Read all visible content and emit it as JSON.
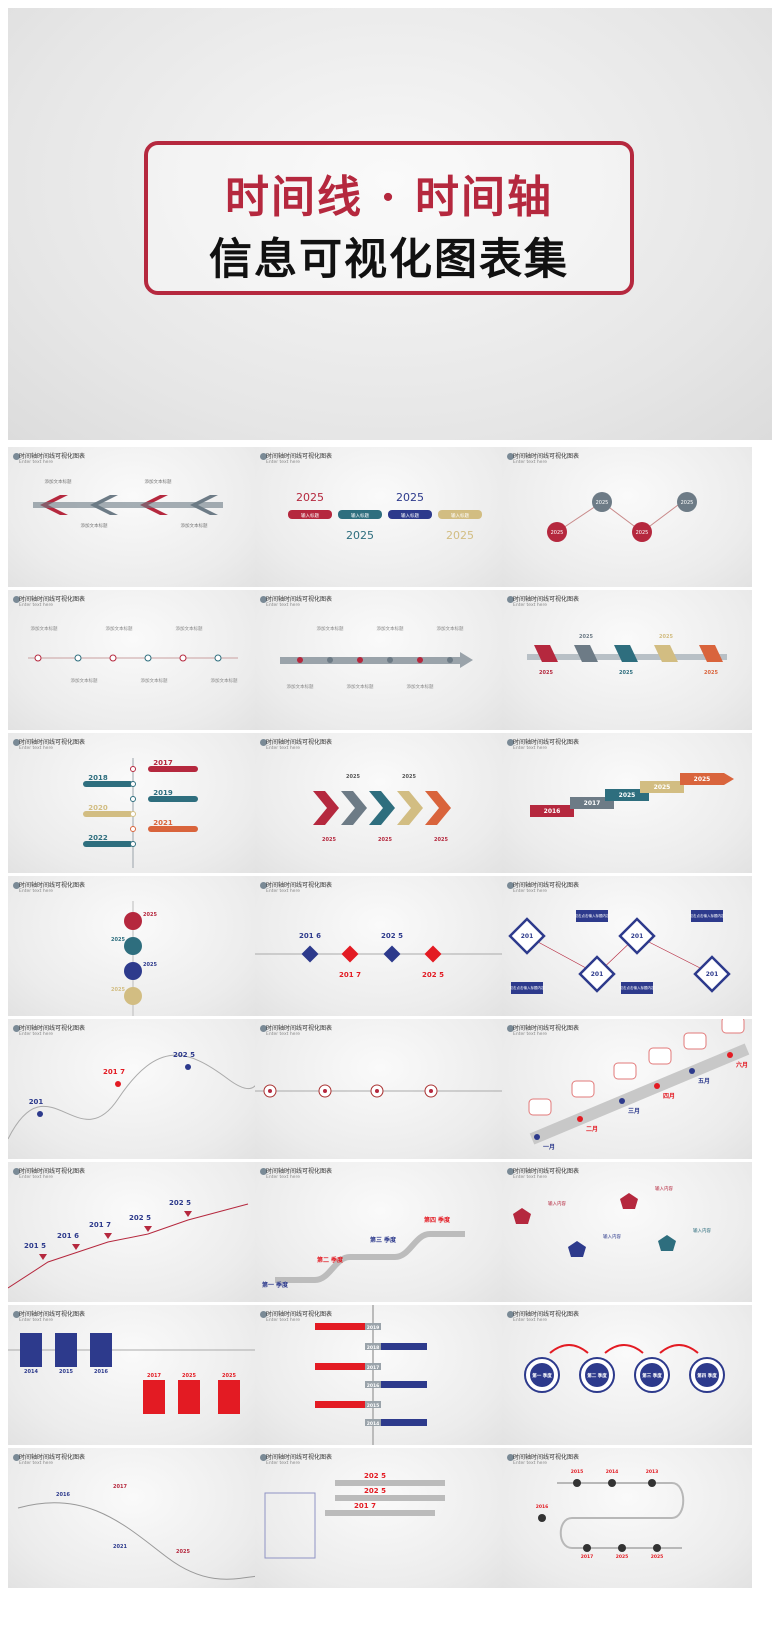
{
  "hero": {
    "title_line1": "时间线 · 时间轴",
    "title_line2": "信息可视化图表集",
    "accent": "#b5283e"
  },
  "slides": [
    {
      "title": "时间轴时间线可视化图表",
      "subtitle": "Enter text here",
      "labels": [
        "添加文本标题",
        "添加文本标题",
        "添加文本标题",
        "添加文本标题"
      ]
    },
    {
      "title": "时间轴时间线可视化图表",
      "subtitle": "Enter text here",
      "labels": [
        "2025",
        "2025",
        "2025",
        "2025",
        "输入标题",
        "输入标题",
        "输入标题",
        "输入标题"
      ]
    },
    {
      "title": "时间轴时间线可视化图表",
      "subtitle": "Enter text here",
      "labels": [
        "2025",
        "2025",
        "2025",
        "2025"
      ]
    },
    {
      "title": "时间轴时间线可视化图表",
      "subtitle": "Enter text here",
      "labels": [
        "添加文本标题",
        "添加文本标题",
        "添加文本标题",
        "添加文本标题",
        "添加文本标题",
        "添加文本标题"
      ]
    },
    {
      "title": "时间轴时间线可视化图表",
      "subtitle": "Enter text here",
      "labels": [
        "添加文本标题",
        "添加文本标题",
        "添加文本标题",
        "添加文本标题",
        "添加文本标题",
        "添加文本标题"
      ]
    },
    {
      "title": "时间轴时间线可视化图表",
      "subtitle": "Enter text here",
      "labels": [
        "2025",
        "2025",
        "2025",
        "2025",
        "2025"
      ]
    },
    {
      "title": "时间轴时间线可视化图表",
      "subtitle": "Enter text here",
      "labels": [
        "2017",
        "2018",
        "2019",
        "2020",
        "2021",
        "2022"
      ]
    },
    {
      "title": "时间轴时间线可视化图表",
      "subtitle": "Enter text here",
      "labels": [
        "2025",
        "2025",
        "2025",
        "2025",
        "2025"
      ]
    },
    {
      "title": "时间轴时间线可视化图表",
      "subtitle": "Enter text here",
      "labels": [
        "2016",
        "2017",
        "2025",
        "2025",
        "2025"
      ]
    },
    {
      "title": "时间轴时间线可视化图表",
      "subtitle": "Enter text here",
      "labels": [
        "2025",
        "2025",
        "2025",
        "2025"
      ]
    },
    {
      "title": "时间轴时间线可视化图表",
      "subtitle": "Enter text here",
      "labels": [
        "201 6",
        "201 7",
        "202 5",
        "202 5"
      ]
    },
    {
      "title": "时间轴时间线可视化图表",
      "subtitle": "Enter text here",
      "labels": [
        "201",
        "201",
        "201",
        "201",
        "双击点击输入标题内容",
        "双击点击输入标题内容",
        "双击点击输入标题内容",
        "双击点击输入标题内容"
      ]
    },
    {
      "title": "时间轴时间线可视化图表",
      "subtitle": "Enter text here",
      "labels": [
        "201",
        "201 7",
        "202 5"
      ]
    },
    {
      "title": "时间轴时间线可视化图表",
      "subtitle": "Enter text here",
      "labels": []
    },
    {
      "title": "时间轴时间线可视化图表",
      "subtitle": "Enter text here",
      "labels": [
        "一月",
        "二月",
        "三月",
        "四月",
        "五月",
        "六月"
      ]
    },
    {
      "title": "时间轴时间线可视化图表",
      "subtitle": "Enter text here",
      "labels": [
        "201 5",
        "201 6",
        "201 7",
        "202 5",
        "202 5"
      ]
    },
    {
      "title": "时间轴时间线可视化图表",
      "subtitle": "Enter text here",
      "labels": [
        "第一 季度",
        "第二 季度",
        "第三 季度",
        "第四 季度"
      ]
    },
    {
      "title": "时间轴时间线可视化图表",
      "subtitle": "Enter text here",
      "labels": [
        "输入内容",
        "输入内容",
        "输入内容",
        "输入内容"
      ]
    },
    {
      "title": "时间轴时间线可视化图表",
      "subtitle": "Enter text here",
      "labels": [
        "2014",
        "2015",
        "2016",
        "2017",
        "2025",
        "2025"
      ]
    },
    {
      "title": "时间轴时间线可视化图表",
      "subtitle": "Enter text here",
      "labels": [
        "2019",
        "2018",
        "2017",
        "2016",
        "2015",
        "2014"
      ]
    },
    {
      "title": "时间轴时间线可视化图表",
      "subtitle": "Enter text here",
      "labels": [
        "第一 季度",
        "第二 季度",
        "第三 季度",
        "第四 季度"
      ]
    },
    {
      "title": "时间轴时间线可视化图表",
      "subtitle": "Enter text here",
      "labels": [
        "2016",
        "2017",
        "2021",
        "2025"
      ]
    },
    {
      "title": "时间轴时间线可视化图表",
      "subtitle": "Enter text here",
      "labels": [
        "202 5",
        "202 5",
        "201 7"
      ]
    },
    {
      "title": "时间轴时间线可视化图表",
      "subtitle": "Enter text here",
      "labels": [
        "2015",
        "2014",
        "2013",
        "2016",
        "2017",
        "2025",
        "2025"
      ]
    }
  ]
}
